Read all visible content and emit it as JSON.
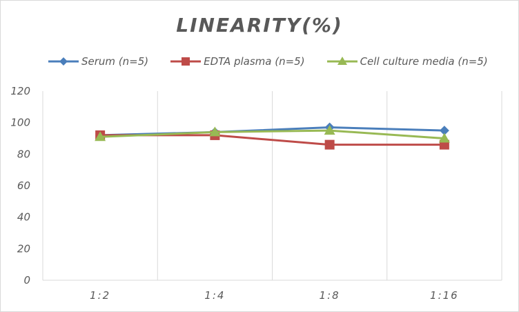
{
  "chart_data": {
    "type": "line",
    "title": "LINEARITY(%)",
    "xlabel": "",
    "ylabel": "",
    "categories": [
      "1:2",
      "1:4",
      "1:8",
      "1:16"
    ],
    "ylim": [
      0,
      120
    ],
    "yticks": [
      "0",
      "20",
      "40",
      "60",
      "80",
      "100",
      "120"
    ],
    "grid": "vertical",
    "legend_position": "top",
    "series": [
      {
        "name": "Serum (n=5)",
        "color": "#4a7ebb",
        "marker": "diamond",
        "values": [
          92,
          94,
          97,
          95
        ]
      },
      {
        "name": "EDTA plasma (n=5)",
        "color": "#be4b48",
        "marker": "square",
        "values": [
          92,
          92,
          86,
          86
        ]
      },
      {
        "name": "Cell culture media (n=5)",
        "color": "#98b954",
        "marker": "triangle",
        "values": [
          91,
          94,
          95,
          90
        ]
      }
    ]
  }
}
